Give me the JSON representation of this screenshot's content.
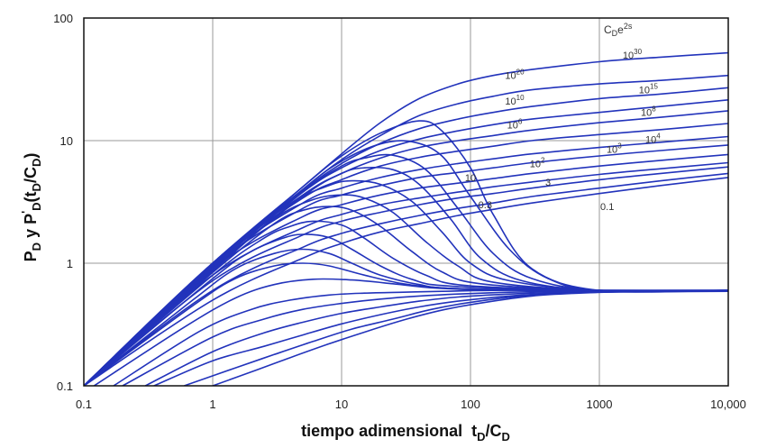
{
  "chart_data": {
    "type": "line",
    "title": "",
    "xscale": "log",
    "yscale": "log",
    "xlim": [
      0.1,
      10000
    ],
    "ylim": [
      0.1,
      100
    ],
    "grid": true,
    "x_ticks": [
      0.1,
      1,
      10,
      100,
      1000,
      10000
    ],
    "x_tick_labels": [
      "0.1",
      "1",
      "10",
      "100",
      "1000",
      "10,000"
    ],
    "y_ticks": [
      0.1,
      1,
      10,
      100
    ],
    "y_tick_labels": [
      "0.1",
      "1",
      "10",
      "100"
    ],
    "xlabel_main": "tiempo adimensional",
    "xlabel_var": "t",
    "xlabel_sub": "D",
    "xlabel_sep": "/C",
    "xlabel_sub2": "D",
    "ylabel_parts": [
      {
        "t": "P",
        "s": "normal"
      },
      {
        "t": "D",
        "s": "sub"
      },
      {
        "t": " y P",
        "s": "normal"
      },
      {
        "t": "'",
        "s": "sup"
      },
      {
        "t": "D",
        "s": "sub"
      },
      {
        "t": "(t",
        "s": "normal"
      },
      {
        "t": "D",
        "s": "sub"
      },
      {
        "t": "/C",
        "s": "normal"
      },
      {
        "t": "D",
        "s": "sub"
      },
      {
        "t": ")",
        "s": "normal"
      }
    ],
    "legend_title": {
      "base": "C",
      "sub": "D",
      "mid": "e",
      "sup": "2s"
    },
    "line_color": "#2233bb",
    "param_values": [
      "10^30",
      "10^20",
      "10^15",
      "10^10",
      "10^8",
      "10^6",
      "10^4",
      "10^3",
      "10^2",
      "10",
      "3",
      "0.3",
      "0.1"
    ],
    "curve_labels": [
      {
        "text": "10",
        "sup": "30",
        "x": 1800,
        "y": 50
      },
      {
        "text": "10",
        "sup": "20",
        "x": 220,
        "y": 34
      },
      {
        "text": "10",
        "sup": "15",
        "x": 2400,
        "y": 26
      },
      {
        "text": "10",
        "sup": "10",
        "x": 220,
        "y": 21
      },
      {
        "text": "10",
        "sup": "8",
        "x": 2400,
        "y": 17
      },
      {
        "text": "10",
        "sup": "6",
        "x": 220,
        "y": 13.5
      },
      {
        "text": "10",
        "sup": "4",
        "x": 2600,
        "y": 10.3
      },
      {
        "text": "10",
        "sup": "3",
        "x": 1300,
        "y": 8.5
      },
      {
        "text": "10",
        "sup": "2",
        "x": 330,
        "y": 6.5
      },
      {
        "text": "10",
        "sup": "",
        "x": 100,
        "y": 5.0
      },
      {
        "text": "3",
        "sup": "",
        "x": 400,
        "y": 4.6
      },
      {
        "text": "0.3",
        "sup": "",
        "x": 130,
        "y": 3.0
      },
      {
        "text": "0.1",
        "sup": "",
        "x": 1150,
        "y": 2.9
      }
    ],
    "series": [
      {
        "type": "pressure",
        "x": [
          0.1,
          1,
          5,
          10,
          20,
          40,
          80,
          150,
          300,
          1000,
          3000,
          10000
        ],
        "y": [
          0.1,
          1,
          4.2,
          7.8,
          14,
          22,
          29,
          34,
          38,
          44,
          48,
          52
        ]
      },
      {
        "type": "pressure",
        "x": [
          0.1,
          1,
          5,
          10,
          20,
          40,
          80,
          150,
          300,
          1000,
          3000,
          10000
        ],
        "y": [
          0.1,
          1,
          4.0,
          7.0,
          11,
          16,
          20,
          23,
          26,
          29,
          31,
          34
        ]
      },
      {
        "type": "pressure",
        "x": [
          0.1,
          1,
          5,
          10,
          20,
          40,
          80,
          150,
          300,
          1000,
          3000,
          10000
        ],
        "y": [
          0.1,
          1,
          3.9,
          6.5,
          9.5,
          12.5,
          15,
          17,
          19,
          22,
          24,
          27
        ]
      },
      {
        "type": "pressure",
        "x": [
          0.1,
          1,
          5,
          10,
          20,
          40,
          80,
          150,
          300,
          1000,
          3000,
          10000
        ],
        "y": [
          0.1,
          1,
          3.8,
          6.0,
          8.3,
          10.3,
          12,
          13.5,
          15,
          17,
          19,
          21.5
        ]
      },
      {
        "type": "pressure",
        "x": [
          0.1,
          1,
          5,
          10,
          20,
          40,
          80,
          150,
          300,
          1000,
          3000,
          10000
        ],
        "y": [
          0.1,
          1,
          3.6,
          5.4,
          7.2,
          8.8,
          10,
          11,
          12.2,
          14,
          15.5,
          17.5
        ]
      },
      {
        "type": "pressure",
        "x": [
          0.1,
          1,
          5,
          10,
          20,
          40,
          80,
          150,
          300,
          1000,
          3000,
          10000
        ],
        "y": [
          0.1,
          1,
          3.4,
          4.8,
          6.2,
          7.3,
          8.2,
          9.0,
          10,
          11.2,
          12.3,
          13.8
        ]
      },
      {
        "type": "pressure",
        "x": [
          0.1,
          1,
          5,
          10,
          20,
          40,
          80,
          150,
          300,
          1000,
          3000,
          10000
        ],
        "y": [
          0.1,
          0.98,
          3.1,
          4.1,
          5.0,
          5.8,
          6.5,
          7.1,
          7.8,
          8.8,
          9.7,
          10.8
        ]
      },
      {
        "type": "pressure",
        "x": [
          0.1,
          1,
          5,
          10,
          20,
          40,
          80,
          150,
          300,
          1000,
          3000,
          10000
        ],
        "y": [
          0.1,
          0.95,
          2.8,
          3.6,
          4.3,
          5.0,
          5.5,
          6.0,
          6.6,
          7.5,
          8.3,
          9.2
        ]
      },
      {
        "type": "pressure",
        "x": [
          0.1,
          1,
          5,
          10,
          20,
          40,
          80,
          150,
          300,
          1000,
          3000,
          10000
        ],
        "y": [
          0.1,
          0.9,
          2.4,
          3.0,
          3.6,
          4.1,
          4.5,
          4.9,
          5.4,
          6.2,
          6.9,
          7.7
        ]
      },
      {
        "type": "pressure",
        "x": [
          0.1,
          1,
          5,
          10,
          20,
          40,
          80,
          150,
          300,
          1000,
          3000,
          10000
        ],
        "y": [
          0.1,
          0.8,
          1.95,
          2.5,
          3.0,
          3.4,
          3.8,
          4.2,
          4.6,
          5.3,
          5.9,
          6.6
        ]
      },
      {
        "type": "pressure",
        "x": [
          0.1,
          1,
          5,
          10,
          20,
          40,
          80,
          150,
          300,
          1000,
          3000,
          10000
        ],
        "y": [
          0.1,
          0.72,
          1.7,
          2.2,
          2.6,
          3.0,
          3.4,
          3.7,
          4.1,
          4.8,
          5.4,
          6.1
        ]
      },
      {
        "type": "pressure",
        "x": [
          0.1,
          1,
          5,
          10,
          20,
          40,
          80,
          150,
          300,
          1000,
          3000,
          10000
        ],
        "y": [
          0.1,
          0.6,
          1.35,
          1.75,
          2.1,
          2.45,
          2.8,
          3.1,
          3.5,
          4.1,
          4.7,
          5.4
        ]
      },
      {
        "type": "pressure",
        "x": [
          0.1,
          1,
          5,
          10,
          20,
          40,
          80,
          150,
          300,
          1000,
          3000,
          10000
        ],
        "y": [
          0.1,
          0.5,
          1.1,
          1.45,
          1.8,
          2.1,
          2.45,
          2.75,
          3.1,
          3.7,
          4.3,
          5.0
        ]
      },
      {
        "type": "derivative",
        "x": [
          0.1,
          1,
          5,
          10,
          20,
          40,
          60,
          100,
          150,
          300,
          1000,
          10000
        ],
        "y": [
          0.1,
          0.95,
          4.2,
          7.5,
          11.5,
          14.5,
          12,
          6,
          2.5,
          0.9,
          0.6,
          0.6
        ]
      },
      {
        "type": "derivative",
        "x": [
          0.1,
          1,
          5,
          10,
          20,
          35,
          60,
          100,
          200,
          400,
          1000,
          10000
        ],
        "y": [
          0.1,
          0.93,
          4.0,
          6.8,
          9.4,
          9.8,
          7.5,
          3.5,
          1.3,
          0.75,
          0.6,
          0.6
        ]
      },
      {
        "type": "derivative",
        "x": [
          0.1,
          1,
          5,
          10,
          15,
          25,
          45,
          80,
          150,
          300,
          1000,
          10000
        ],
        "y": [
          0.1,
          0.92,
          3.8,
          6.2,
          7.2,
          7.6,
          5.8,
          2.8,
          1.2,
          0.75,
          0.6,
          0.6
        ]
      },
      {
        "type": "derivative",
        "x": [
          0.1,
          1,
          5,
          10,
          15,
          25,
          40,
          70,
          120,
          250,
          1000,
          10000
        ],
        "y": [
          0.1,
          0.9,
          3.5,
          5.4,
          6.0,
          5.8,
          4.4,
          2.3,
          1.1,
          0.72,
          0.6,
          0.6
        ]
      },
      {
        "type": "derivative",
        "x": [
          0.1,
          1,
          4,
          8,
          12,
          20,
          35,
          60,
          100,
          200,
          1000,
          10000
        ],
        "y": [
          0.1,
          0.88,
          3.0,
          4.3,
          4.7,
          4.4,
          3.2,
          1.8,
          1.0,
          0.72,
          0.6,
          0.6
        ]
      },
      {
        "type": "derivative",
        "x": [
          0.1,
          1,
          3,
          6,
          10,
          15,
          25,
          45,
          80,
          150,
          1000,
          10000
        ],
        "y": [
          0.1,
          0.86,
          2.3,
          3.3,
          3.6,
          3.4,
          2.6,
          1.5,
          0.95,
          0.7,
          0.6,
          0.6
        ]
      },
      {
        "type": "derivative",
        "x": [
          0.1,
          1,
          3,
          5,
          8,
          12,
          20,
          35,
          60,
          120,
          1000,
          10000
        ],
        "y": [
          0.1,
          0.84,
          2.1,
          2.7,
          2.9,
          2.7,
          2.0,
          1.25,
          0.85,
          0.68,
          0.6,
          0.6
        ]
      },
      {
        "type": "derivative",
        "x": [
          0.1,
          1,
          2.5,
          4,
          6,
          10,
          15,
          25,
          45,
          90,
          1000,
          10000
        ],
        "y": [
          0.1,
          0.8,
          1.6,
          2.0,
          2.2,
          2.05,
          1.6,
          1.1,
          0.8,
          0.66,
          0.6,
          0.6
        ]
      },
      {
        "type": "derivative",
        "x": [
          0.1,
          1,
          2,
          3.5,
          5,
          8,
          12,
          20,
          35,
          70,
          1000,
          10000
        ],
        "y": [
          0.1,
          0.75,
          1.25,
          1.6,
          1.72,
          1.62,
          1.3,
          0.95,
          0.74,
          0.65,
          0.6,
          0.6
        ]
      },
      {
        "type": "derivative",
        "x": [
          0.1,
          0.7,
          1.5,
          3,
          5,
          8,
          12,
          20,
          40,
          80,
          1000,
          10000
        ],
        "y": [
          0.1,
          0.5,
          0.9,
          1.2,
          1.3,
          1.2,
          1.0,
          0.8,
          0.67,
          0.62,
          0.6,
          0.6
        ]
      },
      {
        "type": "derivative",
        "x": [
          0.1,
          0.7,
          1.5,
          3,
          5,
          8,
          15,
          30,
          60,
          150,
          1000,
          10000
        ],
        "y": [
          0.1,
          0.45,
          0.75,
          0.95,
          1.0,
          0.95,
          0.8,
          0.68,
          0.63,
          0.61,
          0.6,
          0.6
        ]
      },
      {
        "type": "derivative",
        "x": [
          0.12,
          0.6,
          1.5,
          3,
          6,
          12,
          25,
          50,
          100,
          300,
          1000,
          10000
        ],
        "y": [
          0.1,
          0.3,
          0.52,
          0.67,
          0.74,
          0.73,
          0.68,
          0.63,
          0.61,
          0.6,
          0.6,
          0.6
        ]
      },
      {
        "type": "derivative",
        "x": [
          0.17,
          0.8,
          2,
          4,
          8,
          15,
          30,
          60,
          150,
          400,
          1000,
          10000
        ],
        "y": [
          0.1,
          0.28,
          0.42,
          0.5,
          0.55,
          0.57,
          0.58,
          0.59,
          0.6,
          0.6,
          0.6,
          0.6
        ]
      },
      {
        "type": "derivative",
        "x": [
          0.2,
          1,
          2.5,
          5,
          10,
          20,
          40,
          80,
          200,
          500,
          1000,
          10000
        ],
        "y": [
          0.1,
          0.25,
          0.35,
          0.42,
          0.47,
          0.51,
          0.54,
          0.56,
          0.58,
          0.59,
          0.6,
          0.6
        ]
      },
      {
        "type": "derivative",
        "x": [
          0.3,
          1,
          2.5,
          5,
          10,
          20,
          40,
          80,
          200,
          500,
          1000,
          10000
        ],
        "y": [
          0.1,
          0.19,
          0.27,
          0.33,
          0.39,
          0.44,
          0.49,
          0.53,
          0.56,
          0.58,
          0.59,
          0.6
        ]
      },
      {
        "type": "derivative",
        "x": [
          0.35,
          1,
          2.5,
          5,
          10,
          20,
          40,
          80,
          200,
          500,
          1000,
          10000
        ],
        "y": [
          0.1,
          0.16,
          0.21,
          0.26,
          0.32,
          0.38,
          0.44,
          0.49,
          0.54,
          0.57,
          0.58,
          0.59
        ]
      },
      {
        "type": "derivative",
        "x": [
          0.6,
          1.5,
          3,
          6,
          12,
          25,
          50,
          100,
          250,
          600,
          2000,
          10000
        ],
        "y": [
          0.1,
          0.14,
          0.18,
          0.23,
          0.29,
          0.35,
          0.42,
          0.48,
          0.54,
          0.57,
          0.59,
          0.6
        ]
      },
      {
        "type": "derivative",
        "x": [
          1.0,
          2,
          4,
          8,
          16,
          32,
          64,
          130,
          300,
          700,
          2000,
          10000
        ],
        "y": [
          0.1,
          0.13,
          0.17,
          0.22,
          0.28,
          0.35,
          0.42,
          0.48,
          0.54,
          0.57,
          0.59,
          0.6
        ]
      }
    ]
  }
}
